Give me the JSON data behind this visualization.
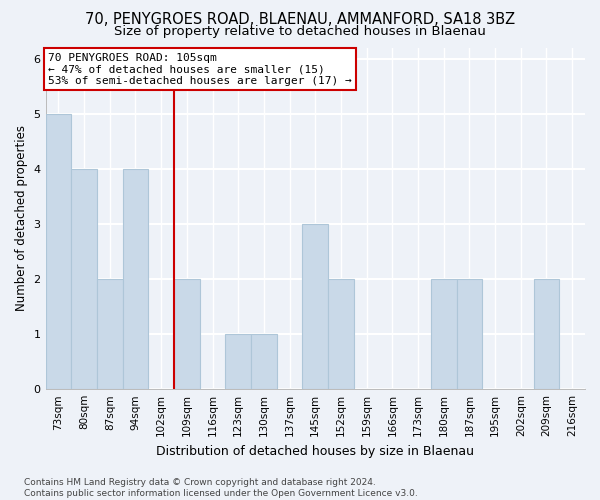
{
  "title": "70, PENYGROES ROAD, BLAENAU, AMMANFORD, SA18 3BZ",
  "subtitle": "Size of property relative to detached houses in Blaenau",
  "xlabel": "Distribution of detached houses by size in Blaenau",
  "ylabel": "Number of detached properties",
  "categories": [
    "73sqm",
    "80sqm",
    "87sqm",
    "94sqm",
    "102sqm",
    "109sqm",
    "116sqm",
    "123sqm",
    "130sqm",
    "137sqm",
    "145sqm",
    "152sqm",
    "159sqm",
    "166sqm",
    "173sqm",
    "180sqm",
    "187sqm",
    "195sqm",
    "202sqm",
    "209sqm",
    "216sqm"
  ],
  "values": [
    5,
    4,
    2,
    4,
    0,
    2,
    0,
    1,
    1,
    0,
    3,
    2,
    0,
    0,
    0,
    2,
    2,
    0,
    0,
    2,
    0
  ],
  "bar_color": "#c9d9e8",
  "bar_edge_color": "#aec6d8",
  "vline_x_idx": 4,
  "vline_color": "#cc0000",
  "annotation_line1": "70 PENYGROES ROAD: 105sqm",
  "annotation_line2": "← 47% of detached houses are smaller (15)",
  "annotation_line3": "53% of semi-detached houses are larger (17) →",
  "annotation_box_color": "#ffffff",
  "annotation_box_edge_color": "#cc0000",
  "ylim": [
    0,
    6.2
  ],
  "yticks": [
    0,
    1,
    2,
    3,
    4,
    5,
    6
  ],
  "footer": "Contains HM Land Registry data © Crown copyright and database right 2024.\nContains public sector information licensed under the Open Government Licence v3.0.",
  "background_color": "#eef2f8",
  "grid_color": "#ffffff",
  "title_fontsize": 10.5,
  "subtitle_fontsize": 9.5,
  "ylabel_fontsize": 8.5,
  "xlabel_fontsize": 9,
  "tick_fontsize": 7.5,
  "footer_fontsize": 6.5,
  "annotation_fontsize": 8
}
